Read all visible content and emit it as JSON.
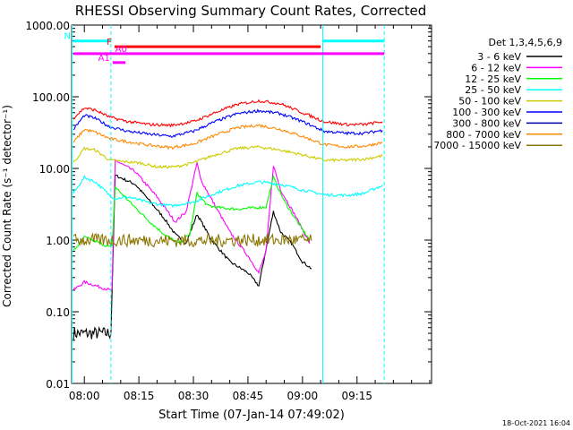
{
  "chart_data": {
    "type": "line",
    "title": "RHESSI Observing Summary Count Rates, Corrected",
    "xlabel": "Start Time (07-Jan-14 07:49:02)",
    "ylabel": "Corrected Count Rate (s⁻¹ detector⁻¹)",
    "yscale": "log",
    "ylim": [
      0.01,
      1000
    ],
    "xlim_minutes": [
      -3.5,
      95.5
    ],
    "ytick_labels": [
      "1000.00",
      "100.00",
      "10.00",
      "1.00",
      "0.10",
      "0.01"
    ],
    "ytick_values": [
      1000,
      100,
      10,
      1,
      0.1,
      0.01
    ],
    "xtick_labels": [
      "08:00",
      "08:15",
      "08:30",
      "08:45",
      "09:00",
      "09:15"
    ],
    "xtick_minutes": [
      0,
      15,
      30,
      45,
      60,
      75
    ],
    "grid": false,
    "legend_title": "Det 1,3,4,5,6,9",
    "legend_position": "right",
    "series": [
      {
        "name": "3 - 6 keV",
        "color": "#000000",
        "x": [
          -3,
          7.3,
          8.5,
          14,
          18,
          22,
          25,
          28,
          31,
          35,
          40,
          45,
          48,
          52,
          54,
          57,
          60,
          62.5
        ],
        "y": [
          0.05,
          0.05,
          8,
          6,
          3.5,
          2,
          1.2,
          0.9,
          2.3,
          1.0,
          0.5,
          0.35,
          0.23,
          2.5,
          1.3,
          0.9,
          0.5,
          0.4
        ]
      },
      {
        "name": "6 - 12 keV",
        "color": "#ff00ff",
        "x": [
          -3,
          0,
          7,
          7.6,
          8.5,
          14,
          20,
          25,
          28,
          31,
          32,
          36,
          40,
          45,
          48,
          50,
          52,
          54,
          58,
          62
        ],
        "y": [
          0.2,
          0.26,
          0.2,
          0.2,
          13,
          9,
          4,
          1.8,
          2.5,
          12,
          7,
          3,
          1.3,
          0.6,
          0.35,
          0.7,
          11,
          5,
          2.2,
          0.9
        ]
      },
      {
        "name": "12 - 25 keV",
        "color": "#00ff00",
        "x": [
          -3,
          0,
          7,
          7.6,
          8.5,
          13,
          18,
          22,
          26,
          29,
          31,
          34,
          38,
          42,
          46,
          50,
          52,
          55,
          58,
          62
        ],
        "y": [
          0.7,
          1.1,
          0.8,
          0.8,
          5.5,
          3.2,
          1.8,
          1.2,
          0.9,
          1.2,
          4.5,
          3.0,
          2.8,
          2.7,
          2.8,
          2.9,
          7.5,
          3.5,
          2.0,
          1.0
        ]
      },
      {
        "name": "25 - 50 keV",
        "color": "#00ffff",
        "x": [
          -3,
          0,
          3,
          7,
          8.5,
          12,
          18,
          24,
          30,
          36,
          42,
          48,
          54,
          60,
          66,
          72,
          77,
          82
        ],
        "y": [
          4.5,
          7.5,
          6.5,
          4.2,
          3.8,
          4.0,
          3.3,
          3.0,
          3.4,
          4.5,
          5.7,
          6.5,
          6.0,
          5.0,
          4.3,
          4.2,
          4.5,
          5.8
        ]
      },
      {
        "name": "50 - 100 keV",
        "color": "#cccc00",
        "x": [
          -3,
          0,
          3,
          7,
          10,
          15,
          20,
          25,
          30,
          36,
          42,
          48,
          54,
          60,
          66,
          72,
          77,
          82
        ],
        "y": [
          12,
          19,
          18,
          13,
          12.5,
          12,
          10.5,
          10.5,
          12,
          15.5,
          19,
          20,
          18,
          15.5,
          13,
          13,
          13.5,
          15
        ]
      },
      {
        "name": "100 - 300 keV",
        "color": "#0000ff",
        "x": [
          -3,
          0,
          3,
          7,
          12,
          18,
          24,
          30,
          36,
          42,
          48,
          54,
          60,
          66,
          72,
          77,
          82
        ],
        "y": [
          35,
          55,
          50,
          38,
          33,
          30,
          28,
          33,
          45,
          58,
          64,
          58,
          45,
          33,
          31,
          31,
          34
        ]
      },
      {
        "name": "300 - 800 keV",
        "color": "#0000aa",
        "x": [],
        "y": []
      },
      {
        "name": "800 - 7000 keV",
        "color": "#ff8800",
        "x": [
          -3,
          0,
          3,
          7,
          12,
          18,
          24,
          30,
          36,
          42,
          48,
          54,
          60,
          66,
          72,
          77,
          82
        ],
        "y": [
          23,
          35,
          32,
          26,
          23.5,
          21,
          19.5,
          22,
          29,
          37,
          40,
          35,
          28,
          21.5,
          20,
          20.5,
          23
        ]
      },
      {
        "name": "7000 - 15000 keV",
        "color": "#8b7500",
        "x": [
          -3,
          7.3,
          8.5,
          25,
          36,
          40,
          55,
          60,
          62.5
        ],
        "y": [
          1.0,
          1.0,
          1.0,
          0.98,
          0.98,
          1.0,
          1.0,
          1.0,
          0.98
        ]
      },
      {
        "name": "",
        "color": "#ff0000",
        "x": [
          -3,
          0,
          3,
          7,
          12,
          18,
          24,
          30,
          36,
          42,
          48,
          54,
          60,
          66,
          72,
          77,
          82
        ],
        "y": [
          50,
          70,
          65,
          52,
          45,
          41,
          40,
          45,
          60,
          78,
          88,
          80,
          60,
          45,
          41,
          41,
          45
        ]
      }
    ],
    "annotations": {
      "attenuator_bars": [
        {
          "label": "N",
          "color": "#00ffff",
          "y_value": 600,
          "segments": [
            [
              -3,
              7.3
            ],
            [
              65.7,
              82.5
            ]
          ]
        },
        {
          "label": "F",
          "color": "#ff0000",
          "y_value": 500,
          "segments": [
            [
              8.3,
              65.0
            ]
          ]
        },
        {
          "label": "A0",
          "color": "#ff00ff",
          "y_value": 400,
          "segments": [
            [
              -3,
              82.5
            ]
          ]
        },
        {
          "label": "A1",
          "color": "#ff00ff",
          "y_value": 300,
          "segments": [
            [
              7.8,
              11.3
            ]
          ]
        }
      ],
      "vertical_lines": [
        {
          "x": -3.4,
          "color": "#00ffff",
          "style": "solid"
        },
        {
          "x": 7.3,
          "color": "#00ffff",
          "style": "dashed"
        },
        {
          "x": 65.6,
          "color": "#00ffff",
          "style": "solid"
        },
        {
          "x": 82.5,
          "color": "#00ffff",
          "style": "dashed"
        }
      ]
    }
  },
  "footer": {
    "date_stamp": "18-Oct-2021 16:04"
  }
}
